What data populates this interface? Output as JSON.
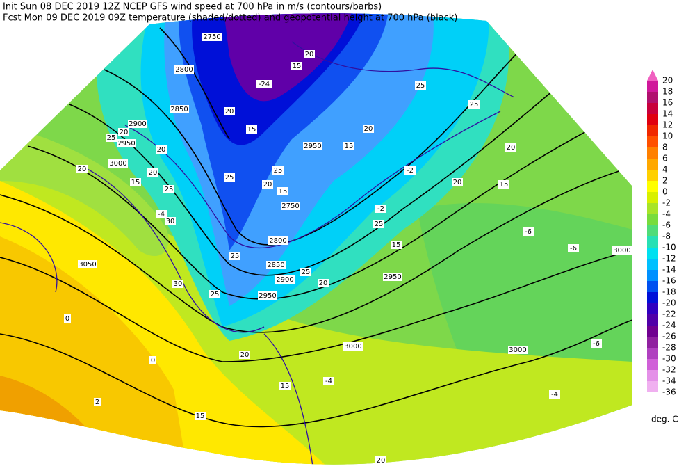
{
  "header": {
    "line1": "Init  Sun 08 DEC 2019 12Z  NCEP GFS wind speed at 700 hPa in m/s (contours/barbs)",
    "line2": "Fcst Mon 09 DEC 2019 09Z  temperature (shaded/dotted) and geopotential height at 700 hPa (black)"
  },
  "colorbar": {
    "values": [
      20,
      18,
      16,
      14,
      12,
      10,
      8,
      6,
      4,
      2,
      0,
      -2,
      -4,
      -6,
      -8,
      -10,
      -12,
      -14,
      -16,
      -18,
      -20,
      -22,
      -24,
      -26,
      -28,
      -30,
      -32,
      -34,
      -36
    ],
    "colors": [
      "#f060c0",
      "#d0189a",
      "#b0106e",
      "#c8003c",
      "#e00010",
      "#f02800",
      "#ff5000",
      "#ff8000",
      "#ffa800",
      "#ffd000",
      "#ffff00",
      "#d8f000",
      "#a8e428",
      "#78dc3c",
      "#50dc78",
      "#28e0b4",
      "#00e0f0",
      "#00c0ff",
      "#0090ff",
      "#0050f0",
      "#0010d8",
      "#3000c0",
      "#5000a8",
      "#700090",
      "#9020a0",
      "#b040c0",
      "#d060d8",
      "#e490e8",
      "#f0b0f0"
    ],
    "unit": "deg. C"
  },
  "map": {
    "height_labels": [
      2750,
      2800,
      2850,
      2900,
      2950,
      3000,
      3050,
      2950,
      2750,
      2800,
      2850,
      2900,
      2950,
      2950,
      3000,
      3000,
      3000
    ],
    "wind_labels": [
      20,
      15,
      20,
      15,
      25,
      25,
      20,
      15,
      20,
      15,
      20,
      25,
      25,
      20,
      15,
      25,
      20,
      15,
      20,
      20,
      25,
      20,
      30,
      25,
      25,
      30,
      20,
      25,
      15,
      25,
      20,
      15,
      15,
      20
    ],
    "temperature_labels": [
      -6,
      -6,
      -6,
      -4,
      -4,
      0,
      0,
      2,
      -24,
      -2,
      -4,
      -2
    ]
  }
}
